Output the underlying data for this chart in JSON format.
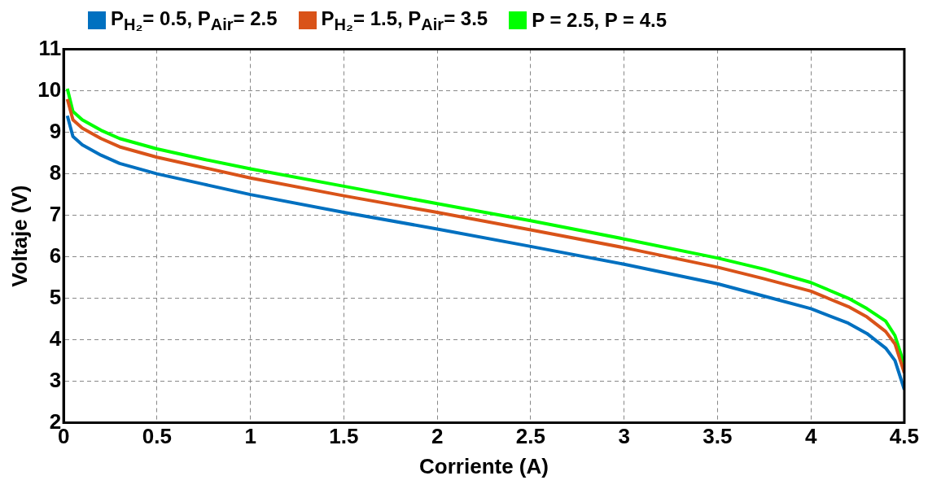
{
  "chart_data": {
    "type": "line",
    "xlabel": "Corriente (A)",
    "ylabel": "Voltaje (V)",
    "xlim": [
      0,
      4.5
    ],
    "ylim": [
      2,
      11
    ],
    "xticks": [
      0,
      0.5,
      1,
      1.5,
      2,
      2.5,
      3,
      3.5,
      4,
      4.5
    ],
    "yticks": [
      2,
      3,
      4,
      5,
      6,
      7,
      8,
      9,
      10,
      11
    ],
    "grid": true,
    "legend": "top left",
    "line_style": "solid",
    "marker": "none",
    "x": [
      0.02,
      0.05,
      0.1,
      0.2,
      0.3,
      0.5,
      0.75,
      1,
      1.5,
      2,
      2.5,
      3,
      3.5,
      3.75,
      4,
      4.2,
      4.3,
      4.4,
      4.45,
      4.5
    ],
    "series": [
      {
        "name": "P$_{H₂}$= 0.5, P$_{Air}$= 2.5",
        "color": "#0070c0",
        "values": [
          9.4,
          8.9,
          8.7,
          8.45,
          8.25,
          8.0,
          7.75,
          7.5,
          7.07,
          6.67,
          6.25,
          5.82,
          5.35,
          5.05,
          4.75,
          4.4,
          4.15,
          3.8,
          3.5,
          2.8
        ]
      },
      {
        "name": "P$_{H₂}$= 1.5, P$_{Air}$= 3.5",
        "color": "#d95319",
        "values": [
          9.8,
          9.3,
          9.1,
          8.85,
          8.65,
          8.4,
          8.15,
          7.9,
          7.47,
          7.07,
          6.65,
          6.22,
          5.75,
          5.47,
          5.17,
          4.8,
          4.55,
          4.2,
          3.9,
          3.2
        ]
      },
      {
        "name": "P = 2.5, P = 4.5",
        "color": "#00ff00",
        "values": [
          10.05,
          9.5,
          9.3,
          9.05,
          8.85,
          8.6,
          8.35,
          8.12,
          7.7,
          7.28,
          6.87,
          6.43,
          5.97,
          5.7,
          5.38,
          5.0,
          4.75,
          4.45,
          4.1,
          3.4
        ]
      }
    ]
  }
}
